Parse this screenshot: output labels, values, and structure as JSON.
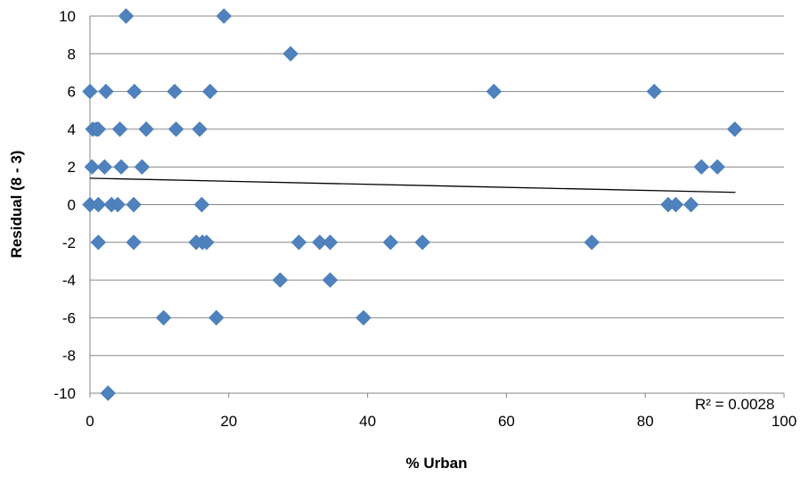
{
  "chart_data": {
    "type": "scatter",
    "xlabel": "% Urban",
    "ylabel": "Residual (8 - 3)",
    "xlim": [
      0,
      100
    ],
    "ylim": [
      -10,
      10
    ],
    "x_ticks": [
      "0",
      "20",
      "40",
      "60",
      "80",
      "100"
    ],
    "y_ticks": [
      "10",
      "8",
      "6",
      "4",
      "2",
      "0",
      "-2",
      "-4",
      "-6",
      "-8",
      "-10"
    ],
    "grid": "horizontal",
    "legend": "none",
    "marker_color": "#4F81BD",
    "trendline": {
      "type": "linear",
      "x": [
        0,
        93
      ],
      "y": [
        1.4,
        0.65
      ],
      "label": "R² = 0.0028"
    },
    "points": [
      {
        "x": 5.2,
        "y": 10
      },
      {
        "x": 19.3,
        "y": 10
      },
      {
        "x": 28.9,
        "y": 8
      },
      {
        "x": 0,
        "y": 6
      },
      {
        "x": 2.3,
        "y": 6
      },
      {
        "x": 6.4,
        "y": 6
      },
      {
        "x": 12.2,
        "y": 6
      },
      {
        "x": 17.3,
        "y": 6
      },
      {
        "x": 58.2,
        "y": 6
      },
      {
        "x": 81.3,
        "y": 6
      },
      {
        "x": 0.4,
        "y": 4
      },
      {
        "x": 0.9,
        "y": 4
      },
      {
        "x": 1.2,
        "y": 4
      },
      {
        "x": 4.3,
        "y": 4
      },
      {
        "x": 8.1,
        "y": 4
      },
      {
        "x": 12.4,
        "y": 4
      },
      {
        "x": 15.8,
        "y": 4
      },
      {
        "x": 92.9,
        "y": 4
      },
      {
        "x": 0.3,
        "y": 2
      },
      {
        "x": 2.1,
        "y": 2
      },
      {
        "x": 4.5,
        "y": 2
      },
      {
        "x": 7.5,
        "y": 2
      },
      {
        "x": 88.1,
        "y": 2
      },
      {
        "x": 90.4,
        "y": 2
      },
      {
        "x": 0,
        "y": 0
      },
      {
        "x": 1.2,
        "y": 0
      },
      {
        "x": 3.1,
        "y": 0
      },
      {
        "x": 4.0,
        "y": 0
      },
      {
        "x": 6.3,
        "y": 0
      },
      {
        "x": 16.1,
        "y": 0
      },
      {
        "x": 83.3,
        "y": 0
      },
      {
        "x": 84.4,
        "y": 0
      },
      {
        "x": 86.6,
        "y": 0
      },
      {
        "x": 1.2,
        "y": -2
      },
      {
        "x": 6.3,
        "y": -2
      },
      {
        "x": 15.3,
        "y": -2
      },
      {
        "x": 16.2,
        "y": -2
      },
      {
        "x": 16.8,
        "y": -2
      },
      {
        "x": 30.1,
        "y": -2
      },
      {
        "x": 33.1,
        "y": -2
      },
      {
        "x": 34.6,
        "y": -2
      },
      {
        "x": 43.3,
        "y": -2
      },
      {
        "x": 47.9,
        "y": -2
      },
      {
        "x": 72.3,
        "y": -2
      },
      {
        "x": 27.4,
        "y": -4
      },
      {
        "x": 34.6,
        "y": -4
      },
      {
        "x": 10.6,
        "y": -6
      },
      {
        "x": 18.2,
        "y": -6
      },
      {
        "x": 39.4,
        "y": -6
      },
      {
        "x": 2.6,
        "y": -10
      }
    ]
  }
}
